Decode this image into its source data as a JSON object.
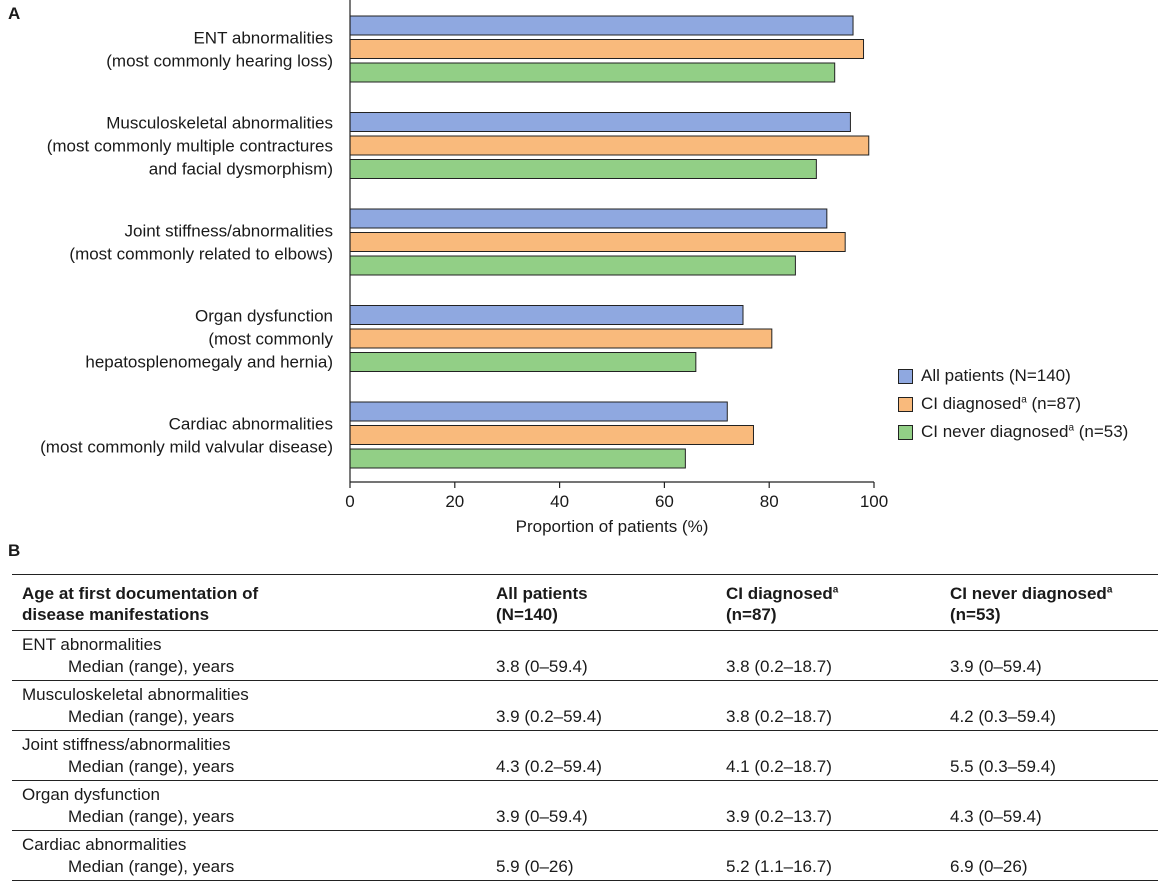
{
  "panel_a_label": "A",
  "panel_b_label": "B",
  "chart_data": {
    "type": "bar",
    "orientation": "horizontal",
    "categories": [
      [
        "ENT abnormalities",
        "(most commonly hearing loss)"
      ],
      [
        "Musculoskeletal abnormalities",
        "(most commonly multiple contractures",
        "and facial dysmorphism)"
      ],
      [
        "Joint stiffness/abnormalities",
        "(most commonly related to elbows)"
      ],
      [
        "Organ dysfunction",
        "(most commonly",
        "hepatosplenomegaly and hernia)"
      ],
      [
        "Cardiac abnormalities",
        "(most commonly mild valvular disease)"
      ]
    ],
    "series": [
      {
        "name": "All patients (N=140)",
        "color": "#8fa8e0",
        "values": [
          96,
          95.5,
          91,
          75,
          72
        ]
      },
      {
        "name": "CI diagnosed",
        "name_sup": "a",
        "name_suffix": " (n=87)",
        "color": "#f9ba7c",
        "values": [
          98,
          99,
          94.5,
          80.5,
          77
        ]
      },
      {
        "name": "CI never diagnosed",
        "name_sup": "a",
        "name_suffix": " (n=53)",
        "color": "#92cf86",
        "values": [
          92.5,
          89,
          85,
          66,
          64
        ]
      }
    ],
    "xlabel": "Proportion of patients (%)",
    "xlim": [
      0,
      100
    ],
    "xticks": [
      0,
      20,
      40,
      60,
      80,
      100
    ],
    "legend_position": "right"
  },
  "table": {
    "headers": [
      [
        "Age at first documentation of",
        "disease manifestations"
      ],
      [
        "All patients",
        "(N=140)"
      ],
      [
        "CI diagnosed",
        "(n=87)"
      ],
      [
        "CI never diagnosed",
        "(n=53)"
      ]
    ],
    "header_sup": "a",
    "rows": [
      {
        "label": "ENT abnormalities",
        "sub": "Median (range), years",
        "values": [
          "3.8 (0–59.4)",
          "3.8 (0.2–18.7)",
          "3.9 (0–59.4)"
        ]
      },
      {
        "label": "Musculoskeletal abnormalities",
        "sub": "Median (range), years",
        "values": [
          "3.9 (0.2–59.4)",
          "3.8 (0.2–18.7)",
          "4.2 (0.3–59.4)"
        ]
      },
      {
        "label": "Joint stiffness/abnormalities",
        "sub": "Median (range), years",
        "values": [
          "4.3 (0.2–59.4)",
          "4.1 (0.2–18.7)",
          "5.5 (0.3–59.4)"
        ]
      },
      {
        "label": "Organ dysfunction",
        "sub": "Median (range), years",
        "values": [
          "3.9 (0–59.4)",
          "3.9 (0.2–13.7)",
          "4.3 (0–59.4)"
        ]
      },
      {
        "label": "Cardiac abnormalities",
        "sub": "Median (range), years",
        "values": [
          "5.9 (0–26)",
          "5.2 (1.1–16.7)",
          "6.9 (0–26)"
        ]
      }
    ]
  }
}
